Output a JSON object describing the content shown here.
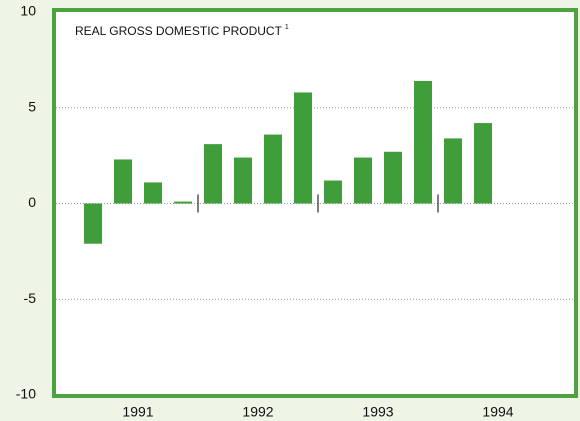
{
  "chart_data": {
    "type": "bar",
    "title": "REAL GROSS DOMESTIC PRODUCT",
    "title_footnote": "1",
    "categories": [
      null,
      null,
      null,
      null,
      null,
      null,
      null,
      null,
      null,
      null,
      null,
      null,
      null,
      null
    ],
    "x_groups": [
      "1991",
      "1992",
      "1993",
      "1994"
    ],
    "values": [
      -2.1,
      2.3,
      1.1,
      0.1,
      3.1,
      2.4,
      3.6,
      5.8,
      1.2,
      2.4,
      2.7,
      6.4,
      3.4,
      4.2
    ],
    "color": "#3f9d3a",
    "ylim": [
      -10,
      10
    ],
    "yticks": [
      -10,
      -5,
      0,
      5,
      10
    ],
    "grid": true
  }
}
